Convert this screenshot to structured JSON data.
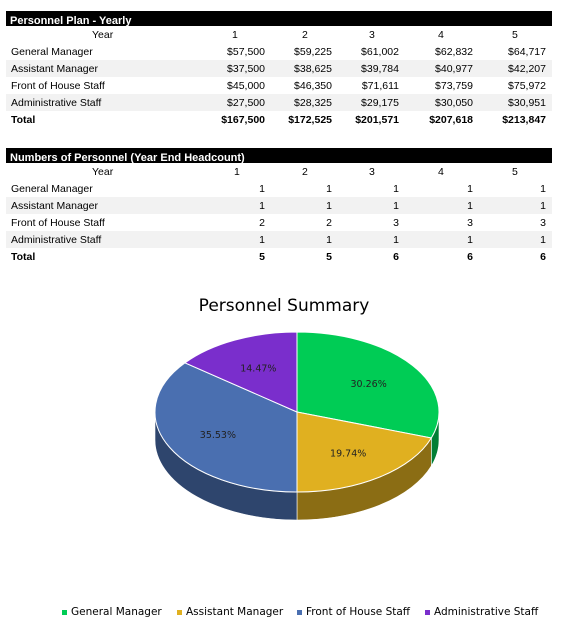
{
  "plan": {
    "title": "Personnel Plan - Yearly",
    "year_label": "Year",
    "years": [
      "1",
      "2",
      "3",
      "4",
      "5"
    ],
    "rows": [
      {
        "label": "General Manager",
        "values": [
          "$57,500",
          "$59,225",
          "$61,002",
          "$62,832",
          "$64,717"
        ]
      },
      {
        "label": "Assistant Manager",
        "values": [
          "$37,500",
          "$38,625",
          "$39,784",
          "$40,977",
          "$42,207"
        ]
      },
      {
        "label": "Front of House Staff",
        "values": [
          "$45,000",
          "$46,350",
          "$71,611",
          "$73,759",
          "$75,972"
        ]
      },
      {
        "label": "Administrative Staff",
        "values": [
          "$27,500",
          "$28,325",
          "$29,175",
          "$30,050",
          "$30,951"
        ]
      }
    ],
    "total": {
      "label": "Total",
      "values": [
        "$167,500",
        "$172,525",
        "$201,571",
        "$207,618",
        "$213,847"
      ]
    }
  },
  "headcount": {
    "title": "Numbers of Personnel (Year End Headcount)",
    "year_label": "Year",
    "years": [
      "1",
      "2",
      "3",
      "4",
      "5"
    ],
    "rows": [
      {
        "label": "General Manager",
        "values": [
          "1",
          "1",
          "1",
          "1",
          "1"
        ]
      },
      {
        "label": "Assistant Manager",
        "values": [
          "1",
          "1",
          "1",
          "1",
          "1"
        ]
      },
      {
        "label": "Front of House Staff",
        "values": [
          "2",
          "2",
          "3",
          "3",
          "3"
        ]
      },
      {
        "label": "Administrative Staff",
        "values": [
          "1",
          "1",
          "1",
          "1",
          "1"
        ]
      }
    ],
    "total": {
      "label": "Total",
      "values": [
        "5",
        "5",
        "6",
        "6",
        "6"
      ]
    }
  },
  "chart_data": {
    "type": "pie",
    "title": "Personnel Summary",
    "categories": [
      "General Manager",
      "Assistant Manager",
      "Front of House Staff",
      "Administrative Staff"
    ],
    "values": [
      30.26,
      19.74,
      35.53,
      14.47
    ],
    "data_labels": [
      "30.26%",
      "19.74%",
      "35.53%",
      "14.47%"
    ],
    "colors": [
      "#00cc55",
      "#e0b020",
      "#4a6fb0",
      "#7a2ecc"
    ],
    "legend_position": "bottom"
  }
}
